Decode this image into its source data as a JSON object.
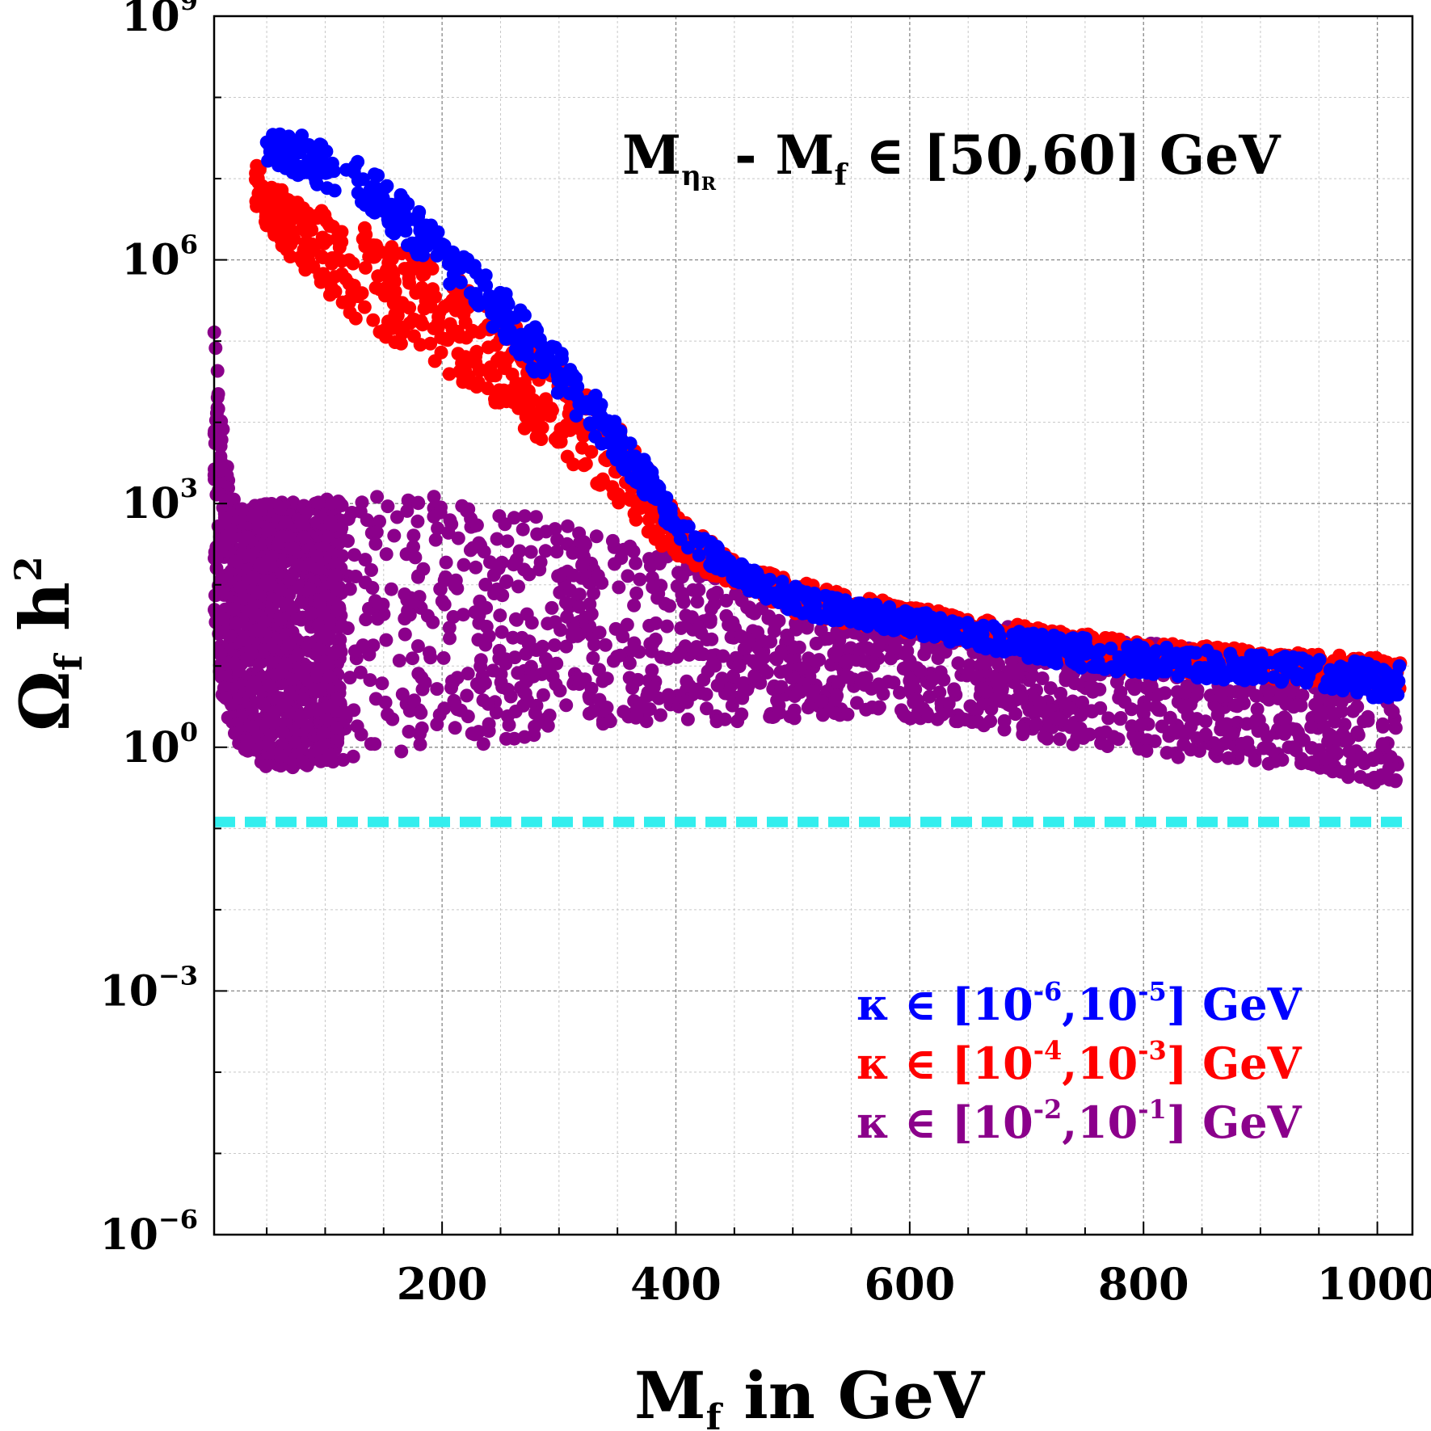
{
  "chart_data": {
    "type": "scatter",
    "title": "",
    "annotation": {
      "prefix": "M",
      "sub": "η",
      "subsub": "R",
      "middle": " - M",
      "middle_sub": "f",
      "rest": " ∈ [50,60] GeV"
    },
    "xlabel": {
      "main": "M",
      "sub": "f",
      "rest": "  in GeV"
    },
    "ylabel": {
      "main": "Ω",
      "sub": "f",
      "rest": " h",
      "sup": "2"
    },
    "x_scale": "linear",
    "y_scale": "log",
    "xlim": [
      5,
      1030
    ],
    "ylim_exp": [
      -6,
      9
    ],
    "x_ticks": [
      {
        "v": 200,
        "label": "200"
      },
      {
        "v": 400,
        "label": "400"
      },
      {
        "v": 600,
        "label": "600"
      },
      {
        "v": 800,
        "label": "800"
      },
      {
        "v": 1000,
        "label": "1000"
      }
    ],
    "y_ticks": [
      {
        "e": 9,
        "base": "10",
        "exp": "9"
      },
      {
        "e": 6,
        "base": "10",
        "exp": "6"
      },
      {
        "e": 3,
        "base": "10",
        "exp": "3"
      },
      {
        "e": 0,
        "base": "10",
        "exp": "0"
      },
      {
        "e": -3,
        "base": "10",
        "exp": "−3"
      },
      {
        "e": -6,
        "base": "10",
        "exp": "−6"
      }
    ],
    "grid": true,
    "reference_line": {
      "log10_y": -0.92,
      "color": "#33eeee",
      "style": "dashed"
    },
    "legend": {
      "placement": "bottom-right",
      "entries": [
        {
          "color": "#0000ff",
          "pre": "κ ∈ [10",
          "e1": "-6",
          "mid": ",10",
          "e2": "-5",
          "post": "] GeV"
        },
        {
          "color": "#ff0000",
          "pre": "κ ∈ [10",
          "e1": "-4",
          "mid": ",10",
          "e2": "-3",
          "post": "] GeV"
        },
        {
          "color": "#8b008b",
          "pre": "κ ∈ [10",
          "e1": "-2",
          "mid": ",10",
          "e2": "-1",
          "post": "] GeV"
        }
      ]
    },
    "series": [
      {
        "label_index": 2,
        "color": "#8b008b",
        "marker": "circle",
        "band_upper": [
          [
            5,
            5.5
          ],
          [
            10,
            4.2
          ],
          [
            20,
            3.1
          ],
          [
            30,
            2.95
          ],
          [
            50,
            3.0
          ],
          [
            80,
            3.05
          ],
          [
            100,
            3.05
          ],
          [
            150,
            3.1
          ],
          [
            200,
            3.1
          ],
          [
            250,
            3.0
          ],
          [
            300,
            2.75
          ],
          [
            350,
            2.55
          ],
          [
            400,
            2.35
          ],
          [
            450,
            2.15
          ],
          [
            500,
            1.95
          ],
          [
            550,
            1.8
          ],
          [
            600,
            1.65
          ],
          [
            650,
            1.55
          ],
          [
            700,
            1.45
          ],
          [
            750,
            1.35
          ],
          [
            800,
            1.3
          ],
          [
            850,
            1.2
          ],
          [
            900,
            1.1
          ],
          [
            950,
            1.05
          ],
          [
            1000,
            1.0
          ],
          [
            1020,
            1.0
          ]
        ],
        "band_lower": [
          [
            5,
            1.5
          ],
          [
            10,
            0.7
          ],
          [
            20,
            0.2
          ],
          [
            30,
            -0.1
          ],
          [
            50,
            -0.25
          ],
          [
            80,
            -0.25
          ],
          [
            100,
            -0.2
          ],
          [
            150,
            -0.1
          ],
          [
            200,
            0.0
          ],
          [
            250,
            0.05
          ],
          [
            300,
            0.2
          ],
          [
            350,
            0.3
          ],
          [
            400,
            0.3
          ],
          [
            450,
            0.3
          ],
          [
            500,
            0.35
          ],
          [
            550,
            0.4
          ],
          [
            600,
            0.35
          ],
          [
            650,
            0.3
          ],
          [
            700,
            0.15
          ],
          [
            750,
            0.0
          ],
          [
            800,
            -0.1
          ],
          [
            850,
            -0.15
          ],
          [
            900,
            -0.2
          ],
          [
            950,
            -0.3
          ],
          [
            1000,
            -0.45
          ],
          [
            1020,
            -0.5
          ]
        ]
      },
      {
        "label_index": 1,
        "color": "#ff0000",
        "marker": "circle",
        "band_upper": [
          [
            40,
            7.2
          ],
          [
            50,
            7.0
          ],
          [
            80,
            6.7
          ],
          [
            120,
            6.5
          ],
          [
            180,
            6.1
          ],
          [
            240,
            5.5
          ],
          [
            280,
            5.0
          ],
          [
            320,
            4.4
          ],
          [
            350,
            4.0
          ],
          [
            380,
            3.4
          ],
          [
            400,
            2.9
          ],
          [
            450,
            2.3
          ],
          [
            500,
            2.05
          ],
          [
            550,
            1.9
          ],
          [
            600,
            1.75
          ],
          [
            650,
            1.6
          ],
          [
            700,
            1.5
          ],
          [
            750,
            1.4
          ],
          [
            800,
            1.3
          ],
          [
            850,
            1.25
          ],
          [
            900,
            1.2
          ],
          [
            950,
            1.15
          ],
          [
            1000,
            1.1
          ],
          [
            1020,
            1.1
          ]
        ],
        "band_lower": [
          [
            40,
            6.7
          ],
          [
            50,
            6.3
          ],
          [
            80,
            5.9
          ],
          [
            120,
            5.3
          ],
          [
            180,
            4.8
          ],
          [
            240,
            4.3
          ],
          [
            280,
            3.8
          ],
          [
            320,
            3.4
          ],
          [
            350,
            3.0
          ],
          [
            380,
            2.6
          ],
          [
            400,
            2.3
          ],
          [
            450,
            2.0
          ],
          [
            500,
            1.65
          ],
          [
            550,
            1.5
          ],
          [
            600,
            1.4
          ],
          [
            650,
            1.3
          ],
          [
            700,
            1.2
          ],
          [
            750,
            1.0
          ],
          [
            800,
            0.95
          ],
          [
            850,
            0.9
          ],
          [
            900,
            0.85
          ],
          [
            950,
            0.8
          ],
          [
            1000,
            0.7
          ],
          [
            1020,
            0.65
          ]
        ]
      },
      {
        "label_index": 0,
        "color": "#0000ff",
        "marker": "circle",
        "band_upper": [
          [
            50,
            7.55
          ],
          [
            80,
            7.55
          ],
          [
            120,
            7.3
          ],
          [
            160,
            6.9
          ],
          [
            200,
            6.3
          ],
          [
            240,
            5.8
          ],
          [
            280,
            5.2
          ],
          [
            320,
            4.6
          ],
          [
            350,
            4.0
          ],
          [
            380,
            3.4
          ],
          [
            400,
            2.9
          ],
          [
            450,
            2.3
          ],
          [
            500,
            2.0
          ],
          [
            550,
            1.8
          ],
          [
            600,
            1.7
          ],
          [
            650,
            1.55
          ],
          [
            700,
            1.45
          ],
          [
            750,
            1.35
          ],
          [
            800,
            1.25
          ],
          [
            850,
            1.2
          ],
          [
            900,
            1.15
          ],
          [
            950,
            1.1
          ],
          [
            1000,
            1.05
          ],
          [
            1020,
            1.0
          ]
        ],
        "band_lower": [
          [
            50,
            7.2
          ],
          [
            80,
            7.0
          ],
          [
            120,
            6.75
          ],
          [
            160,
            6.3
          ],
          [
            200,
            5.8
          ],
          [
            240,
            5.2
          ],
          [
            280,
            4.6
          ],
          [
            320,
            4.0
          ],
          [
            350,
            3.5
          ],
          [
            380,
            3.0
          ],
          [
            400,
            2.55
          ],
          [
            450,
            2.0
          ],
          [
            500,
            1.65
          ],
          [
            550,
            1.5
          ],
          [
            600,
            1.4
          ],
          [
            650,
            1.25
          ],
          [
            700,
            1.1
          ],
          [
            750,
            0.95
          ],
          [
            800,
            0.9
          ],
          [
            850,
            0.85
          ],
          [
            900,
            0.8
          ],
          [
            950,
            0.75
          ],
          [
            1000,
            0.6
          ],
          [
            1020,
            0.6
          ]
        ]
      }
    ]
  }
}
